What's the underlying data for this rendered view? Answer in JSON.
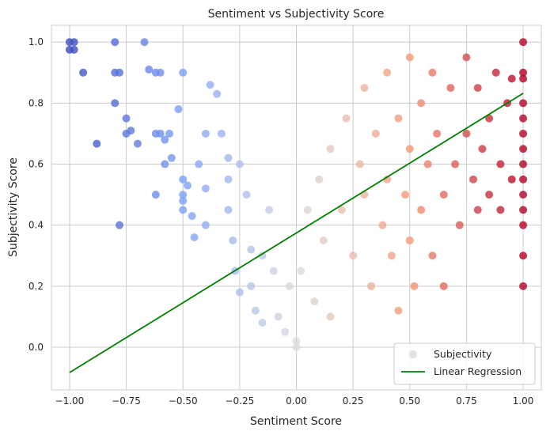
{
  "chart_data": {
    "type": "scatter",
    "title": "Sentiment vs Subjectivity Score",
    "xlabel": "Sentiment Score",
    "ylabel": "Subjectivity Score",
    "xlim": [
      -1.08,
      1.08
    ],
    "ylim": [
      -0.14,
      1.055
    ],
    "xticks": [
      -1.0,
      -0.75,
      -0.5,
      -0.25,
      0.0,
      0.25,
      0.5,
      0.75,
      1.0
    ],
    "xtick_labels": [
      "−1.00",
      "−0.75",
      "−0.50",
      "−0.25",
      "0.00",
      "0.25",
      "0.50",
      "0.75",
      "1.00"
    ],
    "yticks": [
      0.0,
      0.2,
      0.4,
      0.6,
      0.8,
      1.0
    ],
    "ytick_labels": [
      "0.0",
      "0.2",
      "0.4",
      "0.6",
      "0.8",
      "1.0"
    ],
    "grid": true,
    "legend_position": "bottom-right",
    "colormap": "coolwarm",
    "series": [
      {
        "name": "Subjectivity",
        "kind": "scatter",
        "color_by": "x",
        "points": [
          [
            -1.0,
            1.0
          ],
          [
            -1.0,
            0.975
          ],
          [
            -0.98,
            1.0
          ],
          [
            -0.98,
            0.975
          ],
          [
            -0.94,
            0.9
          ],
          [
            -0.88,
            0.667
          ],
          [
            -0.8,
            1.0
          ],
          [
            -0.8,
            0.9
          ],
          [
            -0.8,
            0.8
          ],
          [
            -0.78,
            0.9
          ],
          [
            -0.75,
            0.75
          ],
          [
            -0.75,
            0.7
          ],
          [
            -0.73,
            0.71
          ],
          [
            -0.7,
            0.667
          ],
          [
            -0.78,
            0.4
          ],
          [
            -0.67,
            1.0
          ],
          [
            -0.65,
            0.91
          ],
          [
            -0.62,
            0.9
          ],
          [
            -0.6,
            0.9
          ],
          [
            -0.62,
            0.7
          ],
          [
            -0.6,
            0.7
          ],
          [
            -0.58,
            0.68
          ],
          [
            -0.56,
            0.7
          ],
          [
            -0.62,
            0.5
          ],
          [
            -0.58,
            0.6
          ],
          [
            -0.55,
            0.62
          ],
          [
            -0.52,
            0.78
          ],
          [
            -0.5,
            0.9
          ],
          [
            -0.5,
            0.55
          ],
          [
            -0.5,
            0.5
          ],
          [
            -0.5,
            0.48
          ],
          [
            -0.5,
            0.45
          ],
          [
            -0.48,
            0.53
          ],
          [
            -0.46,
            0.43
          ],
          [
            -0.45,
            0.36
          ],
          [
            -0.43,
            0.6
          ],
          [
            -0.4,
            0.7
          ],
          [
            -0.4,
            0.52
          ],
          [
            -0.4,
            0.4
          ],
          [
            -0.38,
            0.86
          ],
          [
            -0.35,
            0.83
          ],
          [
            -0.33,
            0.7
          ],
          [
            -0.3,
            0.62
          ],
          [
            -0.3,
            0.55
          ],
          [
            -0.3,
            0.45
          ],
          [
            -0.28,
            0.35
          ],
          [
            -0.27,
            0.25
          ],
          [
            -0.25,
            0.18
          ],
          [
            -0.25,
            0.6
          ],
          [
            -0.22,
            0.5
          ],
          [
            -0.2,
            0.32
          ],
          [
            -0.2,
            0.2
          ],
          [
            -0.18,
            0.12
          ],
          [
            -0.15,
            0.3
          ],
          [
            -0.15,
            0.08
          ],
          [
            -0.12,
            0.45
          ],
          [
            -0.1,
            0.25
          ],
          [
            -0.08,
            0.1
          ],
          [
            -0.05,
            0.05
          ],
          [
            -0.03,
            0.2
          ],
          [
            0.0,
            0.02
          ],
          [
            0.0,
            0.0
          ],
          [
            0.02,
            0.25
          ],
          [
            0.05,
            0.45
          ],
          [
            0.08,
            0.15
          ],
          [
            0.1,
            0.55
          ],
          [
            0.12,
            0.35
          ],
          [
            0.15,
            0.1
          ],
          [
            0.15,
            0.65
          ],
          [
            0.2,
            0.45
          ],
          [
            0.22,
            0.75
          ],
          [
            0.25,
            0.3
          ],
          [
            0.28,
            0.6
          ],
          [
            0.3,
            0.85
          ],
          [
            0.3,
            0.5
          ],
          [
            0.33,
            0.2
          ],
          [
            0.35,
            0.7
          ],
          [
            0.38,
            0.4
          ],
          [
            0.4,
            0.9
          ],
          [
            0.4,
            0.55
          ],
          [
            0.42,
            0.3
          ],
          [
            0.45,
            0.75
          ],
          [
            0.45,
            0.12
          ],
          [
            0.48,
            0.5
          ],
          [
            0.5,
            0.95
          ],
          [
            0.5,
            0.65
          ],
          [
            0.5,
            0.35
          ],
          [
            0.52,
            0.2
          ],
          [
            0.55,
            0.8
          ],
          [
            0.55,
            0.45
          ],
          [
            0.58,
            0.6
          ],
          [
            0.6,
            0.9
          ],
          [
            0.6,
            0.3
          ],
          [
            0.62,
            0.7
          ],
          [
            0.65,
            0.5
          ],
          [
            0.65,
            0.2
          ],
          [
            0.68,
            0.85
          ],
          [
            0.7,
            0.6
          ],
          [
            0.72,
            0.4
          ],
          [
            0.75,
            0.95
          ],
          [
            0.75,
            0.7
          ],
          [
            0.78,
            0.55
          ],
          [
            0.8,
            0.85
          ],
          [
            0.8,
            0.45
          ],
          [
            0.82,
            0.65
          ],
          [
            0.85,
            0.75
          ],
          [
            0.85,
            0.5
          ],
          [
            0.88,
            0.9
          ],
          [
            0.9,
            0.6
          ],
          [
            0.9,
            0.45
          ],
          [
            0.93,
            0.8
          ],
          [
            0.95,
            0.88
          ],
          [
            0.95,
            0.55
          ],
          [
            1.0,
            1.0
          ],
          [
            1.0,
            0.9
          ],
          [
            1.0,
            0.88
          ],
          [
            1.0,
            0.8
          ],
          [
            1.0,
            0.75
          ],
          [
            1.0,
            0.7
          ],
          [
            1.0,
            0.65
          ],
          [
            1.0,
            0.6
          ],
          [
            1.0,
            0.55
          ],
          [
            1.0,
            0.5
          ],
          [
            1.0,
            0.45
          ],
          [
            1.0,
            0.4
          ],
          [
            1.0,
            0.3
          ],
          [
            1.0,
            0.2
          ]
        ]
      },
      {
        "name": "Linear Regression",
        "kind": "line",
        "color": "#008000",
        "x": [
          -1.0,
          1.0
        ],
        "y": [
          -0.083,
          0.832
        ]
      }
    ]
  }
}
